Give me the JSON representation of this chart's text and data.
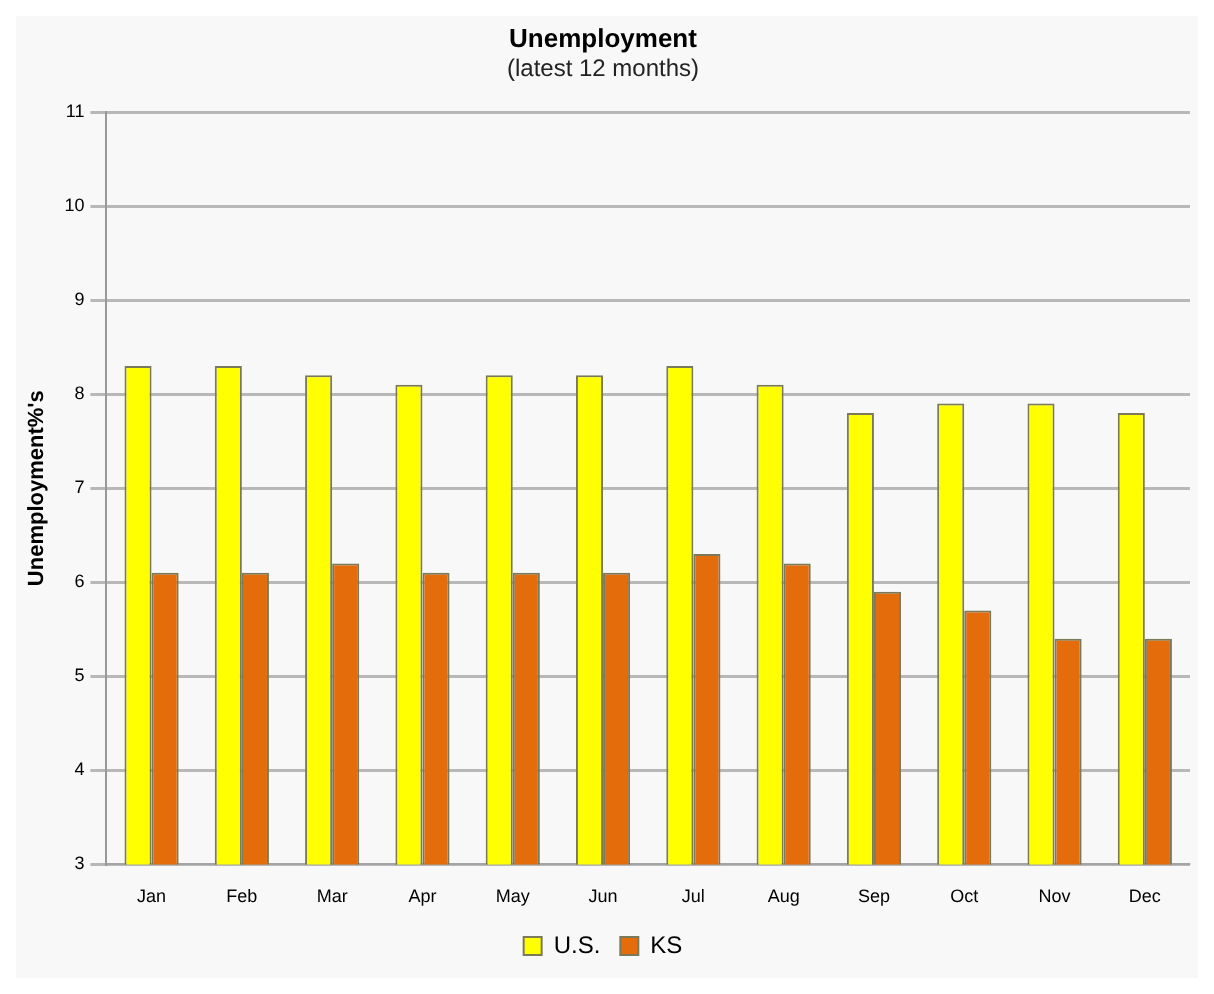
{
  "chart_data": {
    "type": "bar",
    "title": "Unemployment",
    "subtitle": "(latest 12 months)",
    "ylabel": "Unemployment%'s",
    "categories": [
      "Jan",
      "Feb",
      "Mar",
      "Apr",
      "May",
      "Jun",
      "Jul",
      "Aug",
      "Sep",
      "Oct",
      "Nov",
      "Dec"
    ],
    "series": [
      {
        "name": "U.S.",
        "color": "#ffff00",
        "values": [
          8.3,
          8.3,
          8.2,
          8.1,
          8.2,
          8.2,
          8.3,
          8.1,
          7.8,
          7.9,
          7.9,
          7.8
        ]
      },
      {
        "name": "KS",
        "color": "#e46c0a",
        "values": [
          6.1,
          6.1,
          6.2,
          6.1,
          6.1,
          6.1,
          6.3,
          6.2,
          5.9,
          5.7,
          5.4,
          5.4
        ]
      }
    ],
    "ylim": [
      3,
      11
    ],
    "yticks": [
      3,
      4,
      5,
      6,
      7,
      8,
      9,
      10,
      11
    ],
    "grid": "y",
    "legend": "bottom"
  }
}
